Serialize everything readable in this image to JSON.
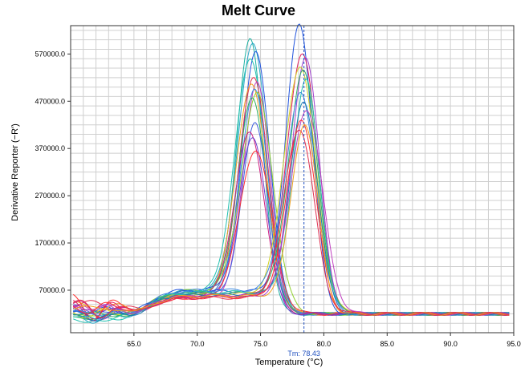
{
  "chart_data": {
    "type": "line",
    "title": "Melt Curve",
    "xlabel": "Temperature (°C)",
    "ylabel": "Derivative Reporter (−R')",
    "xlim": [
      60.0,
      95.0
    ],
    "ylim": [
      -20000,
      630000
    ],
    "x_ticks": [
      65.0,
      70.0,
      75.0,
      80.0,
      85.0,
      90.0,
      95.0
    ],
    "x_tick_labels": [
      "65.0",
      "70.0",
      "75.0",
      "80.0",
      "85.0",
      "90.0",
      "95.0"
    ],
    "y_ticks": [
      70000,
      170000,
      270000,
      370000,
      470000,
      570000
    ],
    "y_tick_labels": [
      "70000.0",
      "170000.0",
      "270000.0",
      "370000.0",
      "470000.0",
      "570000.0"
    ],
    "grid": true,
    "tm_marker": {
      "x": 78.43,
      "label": "Tm: 78.43",
      "color": "#1f4fbf"
    },
    "x_range_data": [
      60.0,
      95.0
    ],
    "groups": [
      {
        "peak_temperature": 74.5,
        "curves": [
          {
            "color": "#1ab0a0",
            "peak": 585000,
            "shoulder": 70000,
            "start": 20000
          },
          {
            "color": "#2aa7c9",
            "peak": 575000,
            "shoulder": 68000,
            "start": 15000
          },
          {
            "color": "#2255dd",
            "peak": 560000,
            "shoulder": 72000,
            "start": 30000
          },
          {
            "color": "#20c0b0",
            "peak": 545000,
            "shoulder": 65000,
            "start": 10000
          },
          {
            "color": "#e03050",
            "peak": 510000,
            "shoulder": 60000,
            "start": 45000
          },
          {
            "color": "#c040c0",
            "peak": 500000,
            "shoulder": 58000,
            "start": 35000
          },
          {
            "color": "#f0a020",
            "peak": 495000,
            "shoulder": 62000,
            "start": 40000
          },
          {
            "color": "#3c8ae0",
            "peak": 480000,
            "shoulder": 66000,
            "start": 25000
          },
          {
            "color": "#90d030",
            "peak": 470000,
            "shoulder": 70000,
            "start": 20000
          },
          {
            "color": "#30b060",
            "peak": 460000,
            "shoulder": 64000,
            "start": 18000
          },
          {
            "color": "#4060e0",
            "peak": 410000,
            "shoulder": 60000,
            "start": 28000
          },
          {
            "color": "#d02080",
            "peak": 390000,
            "shoulder": 56000,
            "start": 42000
          },
          {
            "color": "#6a40d0",
            "peak": 380000,
            "shoulder": 62000,
            "start": 32000
          },
          {
            "color": "#ff3030",
            "peak": 355000,
            "shoulder": 55000,
            "start": 50000
          }
        ]
      },
      {
        "peak_temperature": 78.4,
        "curves": [
          {
            "color": "#2255dd",
            "peak": 620000,
            "shoulder": 68000,
            "start": 20000
          },
          {
            "color": "#e02060",
            "peak": 560000,
            "shoulder": 60000,
            "start": 40000
          },
          {
            "color": "#a040d0",
            "peak": 550000,
            "shoulder": 58000,
            "start": 35000
          },
          {
            "color": "#d0d020",
            "peak": 530000,
            "shoulder": 62000,
            "start": 30000
          },
          {
            "color": "#30b060",
            "peak": 520000,
            "shoulder": 64000,
            "start": 22000
          },
          {
            "color": "#20c0b0",
            "peak": 500000,
            "shoulder": 66000,
            "start": 15000
          },
          {
            "color": "#3c8ae0",
            "peak": 470000,
            "shoulder": 70000,
            "start": 25000
          },
          {
            "color": "#1a7fb0",
            "peak": 455000,
            "shoulder": 60000,
            "start": 18000
          },
          {
            "color": "#c040c0",
            "peak": 440000,
            "shoulder": 57000,
            "start": 38000
          },
          {
            "color": "#ff3030",
            "peak": 420000,
            "shoulder": 55000,
            "start": 48000
          },
          {
            "color": "#f0a020",
            "peak": 410000,
            "shoulder": 58000,
            "start": 36000
          },
          {
            "color": "#e03050",
            "peak": 400000,
            "shoulder": 54000,
            "start": 44000
          }
        ]
      }
    ],
    "baseline_tail": 20000
  }
}
